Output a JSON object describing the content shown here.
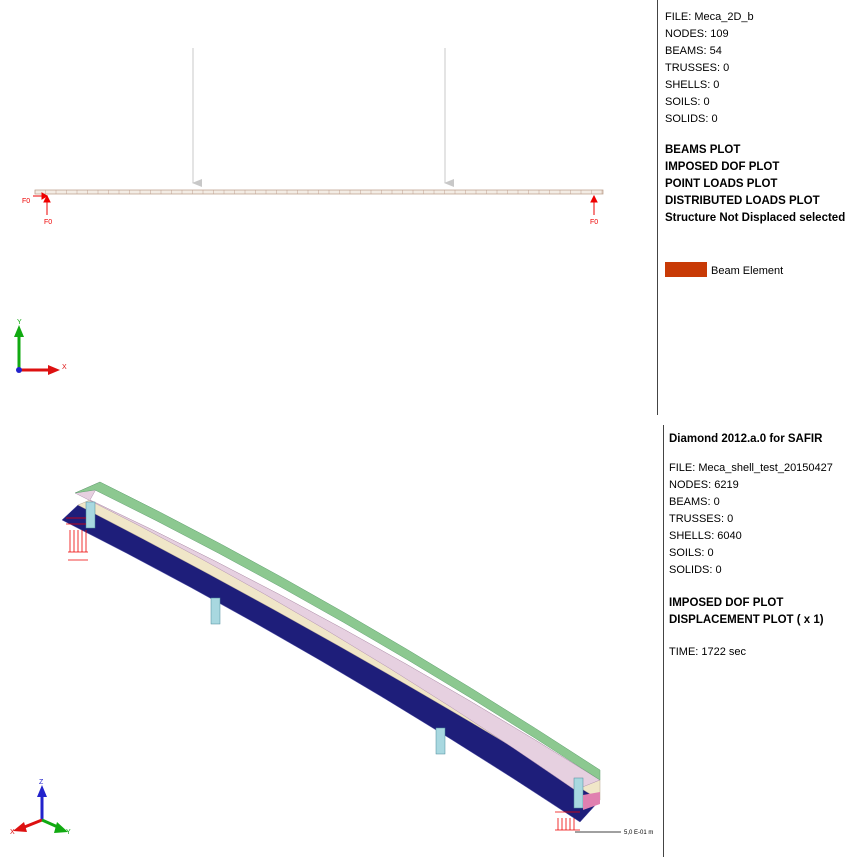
{
  "top": {
    "info": [
      "FILE: Meca_2D_b",
      "NODES: 109",
      "BEAMS: 54",
      "TRUSSES: 0",
      "SHELLS: 0",
      "SOILS: 0",
      "SOLIDS: 0"
    ],
    "plots": [
      "BEAMS PLOT",
      "IMPOSED DOF PLOT",
      "POINT LOADS PLOT",
      "DISTRIBUTED LOADS PLOT",
      "Structure Not Displaced selected"
    ],
    "legend": "Beam Element",
    "support_labels": [
      "F0",
      "F0",
      "F0"
    ],
    "axes": [
      "Y",
      "X"
    ]
  },
  "bottom": {
    "title": "Diamond 2012.a.0 for SAFIR",
    "info": [
      "FILE: Meca_shell_test_20150427",
      "NODES: 6219",
      "BEAMS: 0",
      "TRUSSES: 0",
      "SHELLS: 6040",
      "SOILS: 0",
      "SOLIDS: 0"
    ],
    "plots": [
      "IMPOSED DOF PLOT",
      "DISPLACEMENT PLOT ( x 1)"
    ],
    "time": "TIME: 1722 sec",
    "axes": [
      "Z",
      "X",
      "Y"
    ],
    "scale": "5,0 E-01 m"
  }
}
